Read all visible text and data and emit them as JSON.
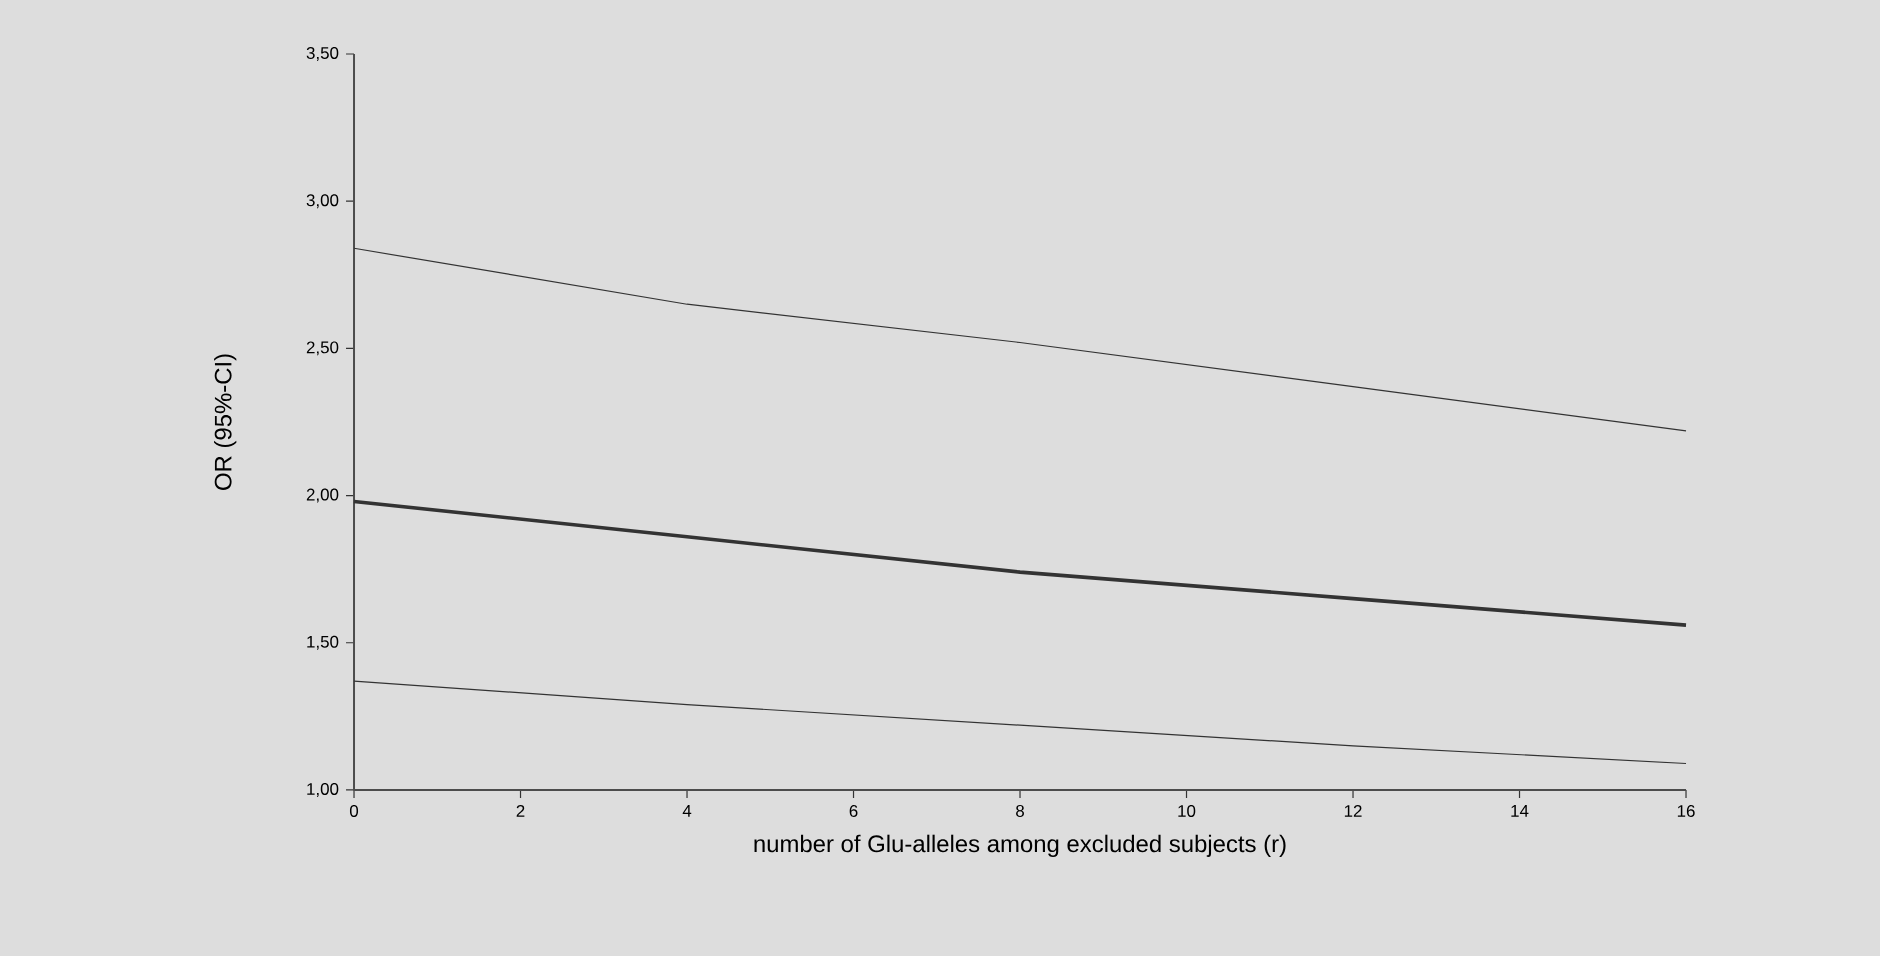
{
  "chart_data": {
    "type": "line",
    "xlabel": "number of Glu-alleles among excluded subjects (r)",
    "ylabel": "OR (95%-CI)",
    "x": [
      0,
      4,
      8,
      12,
      16
    ],
    "series": [
      {
        "color": "#333333",
        "values": [
          2.84,
          2.65,
          2.52,
          2.37,
          2.22
        ]
      },
      {
        "color": "#333333",
        "values": [
          1.98,
          1.86,
          1.74,
          1.65,
          1.56
        ]
      },
      {
        "color": "#333333",
        "values": [
          1.37,
          1.29,
          1.22,
          1.15,
          1.09
        ]
      }
    ],
    "xlim": [
      0,
      16
    ],
    "xticks": [
      0,
      2,
      4,
      6,
      8,
      10,
      12,
      14,
      16
    ],
    "ylim": [
      1,
      3.5
    ],
    "yticks": [
      {
        "value": 1,
        "label": "1,00"
      },
      {
        "value": 1.5,
        "label": "1,50"
      },
      {
        "value": 2,
        "label": "2,00"
      },
      {
        "value": 2.5,
        "label": "2,50"
      },
      {
        "value": 3,
        "label": "3,00"
      },
      {
        "value": 3.5,
        "label": "3,50"
      }
    ],
    "grid": false,
    "marker": "none",
    "line_style": "solid"
  }
}
